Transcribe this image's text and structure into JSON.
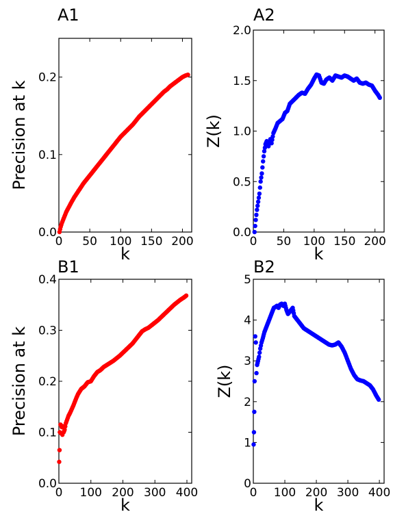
{
  "chart_data": [
    {
      "panel": "A1",
      "type": "scatter",
      "title": "A1",
      "xlabel": "k",
      "ylabel": "Precision at k",
      "xlim": [
        0,
        215
      ],
      "ylim": [
        0,
        0.25
      ],
      "xticks": [
        0,
        50,
        100,
        150,
        200
      ],
      "xtick_labels": [
        "0",
        "50",
        "100",
        "150",
        "200"
      ],
      "yticks": [
        0,
        0.1,
        0.2
      ],
      "ytick_labels": [
        "0.0",
        "0.1",
        "0.2"
      ],
      "color": "#ff0000",
      "series": [
        {
          "x": [
            1,
            3,
            5,
            8,
            12,
            16,
            20,
            25,
            30,
            35,
            40,
            45,
            50,
            55,
            60,
            65,
            70,
            75,
            80,
            85,
            90,
            95,
            100,
            105,
            110,
            115,
            120,
            125,
            130,
            135,
            140,
            145,
            150,
            155,
            160,
            165,
            170,
            175,
            180,
            185,
            190,
            195,
            200,
            205,
            209
          ],
          "y": [
            0.0,
            0.007,
            0.012,
            0.018,
            0.026,
            0.032,
            0.038,
            0.045,
            0.051,
            0.057,
            0.063,
            0.068,
            0.073,
            0.078,
            0.083,
            0.088,
            0.093,
            0.098,
            0.103,
            0.108,
            0.113,
            0.118,
            0.123,
            0.127,
            0.131,
            0.135,
            0.139,
            0.144,
            0.149,
            0.153,
            0.157,
            0.161,
            0.165,
            0.169,
            0.173,
            0.177,
            0.181,
            0.184,
            0.188,
            0.191,
            0.194,
            0.197,
            0.2,
            0.202,
            0.203
          ]
        }
      ]
    },
    {
      "panel": "A2",
      "type": "scatter",
      "title": "A2",
      "xlabel": "k",
      "ylabel": "Z(k)",
      "xlim": [
        0,
        215
      ],
      "ylim": [
        0,
        2.0
      ],
      "xticks": [
        0,
        50,
        100,
        150,
        200
      ],
      "xtick_labels": [
        "0",
        "50",
        "100",
        "150",
        "200"
      ],
      "yticks": [
        0,
        0.5,
        1.0,
        1.5,
        2.0
      ],
      "ytick_labels": [
        "0.0",
        "0.5",
        "1.0",
        "1.5",
        "2.0"
      ],
      "color": "#0000ff",
      "series": [
        {
          "x": [
            2,
            4,
            6,
            8,
            10,
            12,
            14,
            16,
            18,
            20,
            22,
            25,
            28,
            30,
            33,
            36,
            40,
            44,
            48,
            52,
            56,
            60,
            65,
            70,
            75,
            80,
            85,
            90,
            95,
            100,
            104,
            108,
            112,
            116,
            120,
            125,
            130,
            135,
            140,
            145,
            150,
            155,
            160,
            165,
            170,
            175,
            180,
            185,
            190,
            195,
            200,
            205,
            208
          ],
          "y": [
            0.0,
            0.12,
            0.22,
            0.3,
            0.38,
            0.5,
            0.58,
            0.7,
            0.8,
            0.87,
            0.9,
            0.85,
            0.92,
            0.88,
            0.98,
            1.02,
            1.08,
            1.1,
            1.12,
            1.18,
            1.2,
            1.27,
            1.3,
            1.33,
            1.36,
            1.38,
            1.37,
            1.42,
            1.46,
            1.52,
            1.56,
            1.55,
            1.48,
            1.47,
            1.51,
            1.53,
            1.5,
            1.55,
            1.54,
            1.53,
            1.55,
            1.54,
            1.52,
            1.5,
            1.52,
            1.48,
            1.47,
            1.48,
            1.46,
            1.45,
            1.4,
            1.36,
            1.33
          ]
        }
      ]
    },
    {
      "panel": "B1",
      "type": "scatter",
      "title": "B1",
      "xlabel": "k",
      "ylabel": "Precision at k",
      "xlim": [
        0,
        415
      ],
      "ylim": [
        0,
        0.4
      ],
      "xticks": [
        0,
        100,
        200,
        300,
        400
      ],
      "xtick_labels": [
        "0",
        "100",
        "200",
        "300",
        "400"
      ],
      "yticks": [
        0,
        0.1,
        0.2,
        0.3,
        0.4
      ],
      "ytick_labels": [
        "0.0",
        "0.1",
        "0.2",
        "0.3",
        "0.4"
      ],
      "color": "#ff0000",
      "series": [
        {
          "x": [
            1,
            2,
            3,
            5,
            7,
            9,
            11,
            13,
            15,
            18,
            22,
            26,
            30,
            35,
            40,
            45,
            50,
            55,
            60,
            70,
            80,
            90,
            100,
            110,
            120,
            130,
            140,
            150,
            160,
            170,
            180,
            190,
            200,
            210,
            220,
            230,
            240,
            250,
            260,
            270,
            280,
            290,
            300,
            310,
            320,
            330,
            340,
            350,
            360,
            370,
            380,
            390,
            398
          ],
          "y": [
            0.042,
            0.065,
            0.1,
            0.115,
            0.098,
            0.11,
            0.095,
            0.112,
            0.1,
            0.105,
            0.118,
            0.125,
            0.132,
            0.138,
            0.145,
            0.152,
            0.16,
            0.168,
            0.175,
            0.185,
            0.19,
            0.198,
            0.2,
            0.21,
            0.218,
            0.222,
            0.228,
            0.232,
            0.236,
            0.24,
            0.245,
            0.25,
            0.256,
            0.262,
            0.268,
            0.274,
            0.282,
            0.29,
            0.298,
            0.302,
            0.305,
            0.31,
            0.315,
            0.32,
            0.326,
            0.332,
            0.338,
            0.344,
            0.35,
            0.355,
            0.36,
            0.364,
            0.368
          ]
        }
      ]
    },
    {
      "panel": "B2",
      "type": "scatter",
      "title": "B2",
      "xlabel": "k",
      "ylabel": "Z(k)",
      "xlim": [
        0,
        415
      ],
      "ylim": [
        0,
        5
      ],
      "xticks": [
        0,
        100,
        200,
        300,
        400
      ],
      "xtick_labels": [
        "0",
        "100",
        "200",
        "300",
        "400"
      ],
      "yticks": [
        0,
        1,
        2,
        3,
        4,
        5
      ],
      "ytick_labels": [
        "0",
        "1",
        "2",
        "3",
        "4",
        "5"
      ],
      "color": "#0000ff",
      "series": [
        {
          "x": [
            1,
            2,
            3,
            4,
            6,
            8,
            10,
            12,
            15,
            18,
            22,
            26,
            30,
            35,
            40,
            45,
            50,
            55,
            60,
            65,
            70,
            75,
            80,
            85,
            90,
            95,
            100,
            105,
            110,
            115,
            120,
            125,
            130,
            135,
            140,
            150,
            160,
            170,
            180,
            190,
            200,
            210,
            220,
            230,
            240,
            250,
            260,
            270,
            280,
            290,
            300,
            310,
            320,
            330,
            340,
            350,
            360,
            370,
            380,
            390,
            398
          ],
          "y": [
            0.95,
            1.25,
            1.75,
            2.5,
            3.6,
            3.45,
            2.7,
            2.9,
            3.0,
            3.1,
            3.3,
            3.45,
            3.55,
            3.7,
            3.8,
            3.9,
            4.0,
            4.1,
            4.2,
            4.3,
            4.32,
            4.35,
            4.3,
            4.38,
            4.4,
            4.35,
            4.4,
            4.25,
            4.15,
            4.2,
            4.25,
            4.3,
            4.1,
            4.05,
            4.0,
            3.9,
            3.8,
            3.75,
            3.7,
            3.65,
            3.6,
            3.55,
            3.5,
            3.45,
            3.4,
            3.38,
            3.4,
            3.45,
            3.35,
            3.2,
            3.0,
            2.8,
            2.65,
            2.55,
            2.52,
            2.5,
            2.45,
            2.4,
            2.3,
            2.15,
            2.05
          ]
        }
      ]
    }
  ]
}
